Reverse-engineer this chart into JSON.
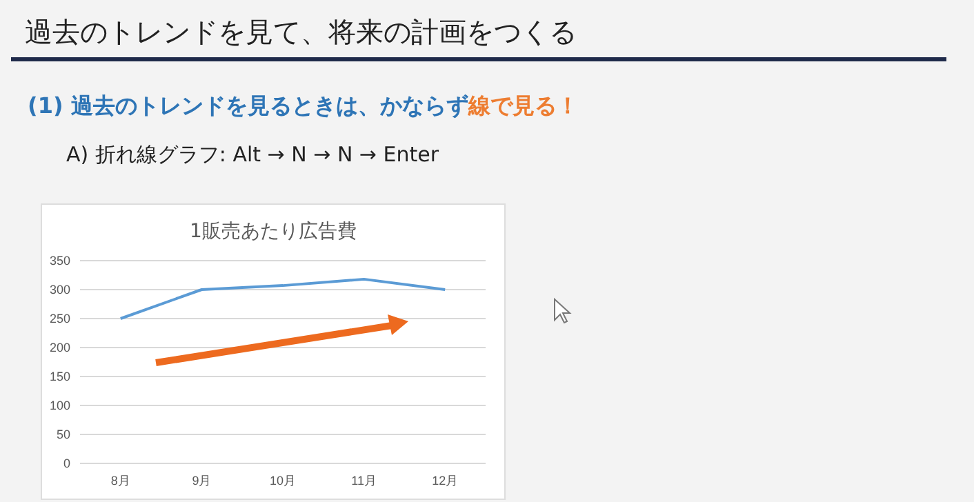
{
  "chart_data": {
    "type": "line",
    "title": "1販売あたり広告費",
    "categories": [
      "8月",
      "9月",
      "10月",
      "11月",
      "12月"
    ],
    "series": [
      {
        "color": "#5b9bd5",
        "values": [
          250,
          300,
          307,
          318,
          300
        ]
      }
    ],
    "ylim": [
      0,
      350
    ],
    "yticks": [
      0,
      50,
      100,
      150,
      200,
      250,
      300,
      350
    ],
    "grid": "y",
    "marker": "none",
    "annotations": [
      "過去のトレンドを見て、将来の計画をつくる",
      "(1) 過去のトレンドを見るときは、かならず",
      "線で見る！",
      "A) 折れ線グラフ: Alt → N → N → Enter"
    ]
  }
}
